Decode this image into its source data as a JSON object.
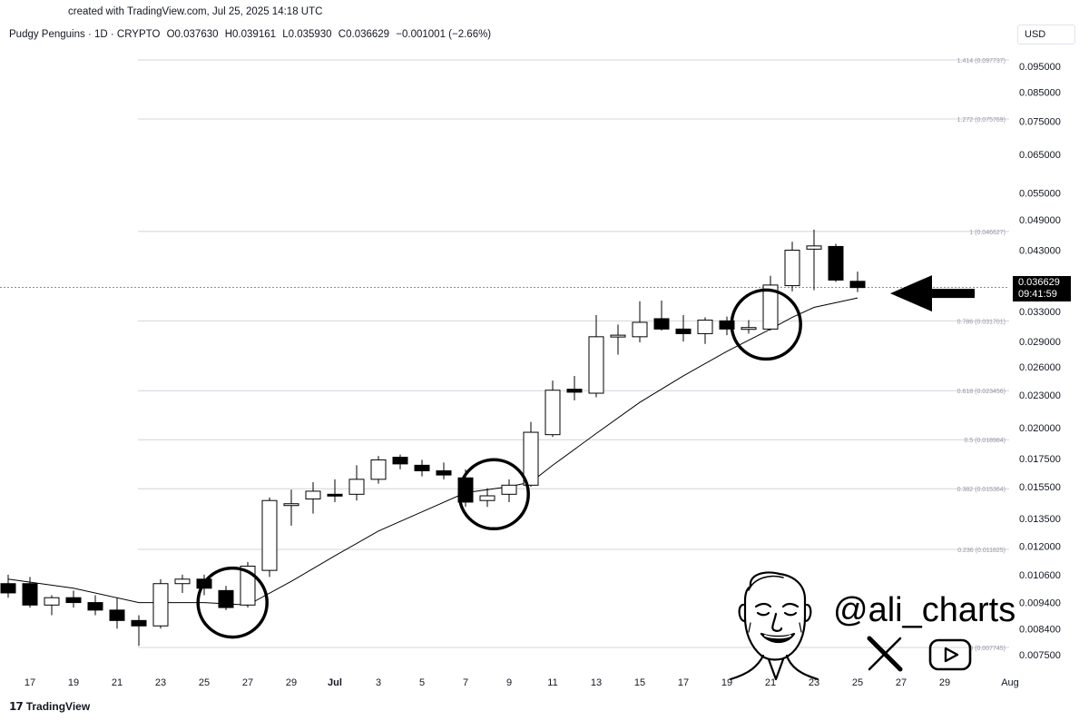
{
  "header": {
    "credit": "created with TradingView.com, Jul 25, 2025 14:18 UTC",
    "symbol": "Pudgy Penguins · 1D · CRYPTO",
    "open": "O0.037630",
    "high": "H0.039161",
    "low": "L0.035930",
    "close": "C0.036629",
    "change": "−0.001001 (−2.66%)",
    "currency": "USD"
  },
  "branding": {
    "tradingview": "TradingView",
    "handle": "@ali_charts",
    "icons": [
      "x-logo-icon",
      "youtube-icon"
    ]
  },
  "price_tag": {
    "price": "0.036629",
    "countdown": "09:41:59"
  },
  "chart_data": {
    "type": "candlestick",
    "y_scale": "log",
    "ylim": [
      0.0068,
      0.11
    ],
    "y_ticks": [
      "0.095000",
      "0.085000",
      "0.075000",
      "0.065000",
      "0.055000",
      "0.049000",
      "0.043000",
      "0.033000",
      "0.029000",
      "0.026000",
      "0.023000",
      "0.020000",
      "0.017500",
      "0.015500",
      "0.013500",
      "0.012000",
      "0.010600",
      "0.009400",
      "0.008400",
      "0.007500"
    ],
    "x_ticks": [
      {
        "label": "17",
        "day": 0
      },
      {
        "label": "19",
        "day": 2
      },
      {
        "label": "21",
        "day": 4
      },
      {
        "label": "23",
        "day": 6
      },
      {
        "label": "25",
        "day": 8
      },
      {
        "label": "27",
        "day": 10
      },
      {
        "label": "29",
        "day": 12
      },
      {
        "label": "Jul",
        "day": 14
      },
      {
        "label": "3",
        "day": 16
      },
      {
        "label": "5",
        "day": 18
      },
      {
        "label": "7",
        "day": 20
      },
      {
        "label": "9",
        "day": 22
      },
      {
        "label": "11",
        "day": 24
      },
      {
        "label": "13",
        "day": 26
      },
      {
        "label": "15",
        "day": 28
      },
      {
        "label": "17",
        "day": 30
      },
      {
        "label": "19",
        "day": 32
      },
      {
        "label": "21",
        "day": 34
      },
      {
        "label": "23",
        "day": 36
      },
      {
        "label": "25",
        "day": 38
      },
      {
        "label": "27",
        "day": 40
      },
      {
        "label": "29",
        "day": 42
      },
      {
        "label": "Aug",
        "day": 45
      }
    ],
    "fib_levels": [
      {
        "ratio": "1.414",
        "value": 0.097737,
        "label": "1.414 (0.097737)"
      },
      {
        "ratio": "1.272",
        "value": 0.075769,
        "label": "1.272 (0.075769)"
      },
      {
        "ratio": "1",
        "value": 0.046627,
        "label": "1 (0.046627)"
      },
      {
        "ratio": "0.786",
        "value": 0.031701,
        "label": "0.786 (0.031701)"
      },
      {
        "ratio": "0.618",
        "value": 0.023456,
        "label": "0.618 (0.023456)"
      },
      {
        "ratio": "0.5",
        "value": 0.018984,
        "label": "0.5 (0.018984)"
      },
      {
        "ratio": "0.382",
        "value": 0.015364,
        "label": "0.382 (0.015364)"
      },
      {
        "ratio": "0.236",
        "value": 0.011825,
        "label": "0.236 (0.011825)"
      },
      {
        "ratio": "0",
        "value": 0.007745,
        "label": "0 (0.007745)"
      }
    ],
    "current_price": 0.036629,
    "candles": [
      {
        "d": -1,
        "o": 0.0102,
        "h": 0.0106,
        "l": 0.0096,
        "c": 0.0098
      },
      {
        "d": 0,
        "o": 0.0102,
        "h": 0.0105,
        "l": 0.0092,
        "c": 0.0093
      },
      {
        "d": 1,
        "o": 0.0093,
        "h": 0.0097,
        "l": 0.0089,
        "c": 0.0096
      },
      {
        "d": 2,
        "o": 0.0096,
        "h": 0.0099,
        "l": 0.0092,
        "c": 0.0094
      },
      {
        "d": 3,
        "o": 0.0094,
        "h": 0.0097,
        "l": 0.0089,
        "c": 0.0091
      },
      {
        "d": 4,
        "o": 0.0091,
        "h": 0.0096,
        "l": 0.0084,
        "c": 0.0087
      },
      {
        "d": 5,
        "o": 0.0087,
        "h": 0.0089,
        "l": 0.0078,
        "c": 0.0085
      },
      {
        "d": 6,
        "o": 0.0085,
        "h": 0.0104,
        "l": 0.0084,
        "c": 0.0102
      },
      {
        "d": 7,
        "o": 0.0102,
        "h": 0.0106,
        "l": 0.0098,
        "c": 0.0104
      },
      {
        "d": 8,
        "o": 0.0104,
        "h": 0.0106,
        "l": 0.0097,
        "c": 0.01
      },
      {
        "d": 9,
        "o": 0.0099,
        "h": 0.0101,
        "l": 0.0091,
        "c": 0.0092
      },
      {
        "d": 10,
        "o": 0.0093,
        "h": 0.0112,
        "l": 0.0092,
        "c": 0.011
      },
      {
        "d": 11,
        "o": 0.0108,
        "h": 0.0148,
        "l": 0.0105,
        "c": 0.0146
      },
      {
        "d": 12,
        "o": 0.0143,
        "h": 0.0153,
        "l": 0.0131,
        "c": 0.0144
      },
      {
        "d": 13,
        "o": 0.0147,
        "h": 0.0158,
        "l": 0.0138,
        "c": 0.0152
      },
      {
        "d": 14,
        "o": 0.015,
        "h": 0.016,
        "l": 0.0145,
        "c": 0.0149
      },
      {
        "d": 15,
        "o": 0.015,
        "h": 0.017,
        "l": 0.0146,
        "c": 0.016
      },
      {
        "d": 16,
        "o": 0.016,
        "h": 0.0177,
        "l": 0.0157,
        "c": 0.0174
      },
      {
        "d": 17,
        "o": 0.0176,
        "h": 0.0178,
        "l": 0.0167,
        "c": 0.0171
      },
      {
        "d": 18,
        "o": 0.017,
        "h": 0.0174,
        "l": 0.0162,
        "c": 0.0166
      },
      {
        "d": 19,
        "o": 0.0166,
        "h": 0.0172,
        "l": 0.016,
        "c": 0.0163
      },
      {
        "d": 20,
        "o": 0.0161,
        "h": 0.0167,
        "l": 0.0142,
        "c": 0.0145
      },
      {
        "d": 21,
        "o": 0.0146,
        "h": 0.0154,
        "l": 0.0142,
        "c": 0.0149
      },
      {
        "d": 22,
        "o": 0.015,
        "h": 0.016,
        "l": 0.0145,
        "c": 0.0156
      },
      {
        "d": 23,
        "o": 0.0156,
        "h": 0.0205,
        "l": 0.0155,
        "c": 0.0196
      },
      {
        "d": 24,
        "o": 0.0194,
        "h": 0.0245,
        "l": 0.0192,
        "c": 0.0235
      },
      {
        "d": 25,
        "o": 0.0236,
        "h": 0.025,
        "l": 0.0225,
        "c": 0.0233
      },
      {
        "d": 26,
        "o": 0.0232,
        "h": 0.0325,
        "l": 0.0228,
        "c": 0.0296
      },
      {
        "d": 27,
        "o": 0.0297,
        "h": 0.0312,
        "l": 0.0274,
        "c": 0.0298
      },
      {
        "d": 28,
        "o": 0.0296,
        "h": 0.0345,
        "l": 0.0289,
        "c": 0.0315
      },
      {
        "d": 29,
        "o": 0.032,
        "h": 0.0346,
        "l": 0.0304,
        "c": 0.0306
      },
      {
        "d": 30,
        "o": 0.0306,
        "h": 0.0325,
        "l": 0.029,
        "c": 0.03
      },
      {
        "d": 31,
        "o": 0.03,
        "h": 0.0322,
        "l": 0.0287,
        "c": 0.0318
      },
      {
        "d": 32,
        "o": 0.0317,
        "h": 0.0323,
        "l": 0.0298,
        "c": 0.0306
      },
      {
        "d": 33,
        "o": 0.0307,
        "h": 0.0318,
        "l": 0.03,
        "c": 0.0308
      },
      {
        "d": 34,
        "o": 0.0306,
        "h": 0.0385,
        "l": 0.0304,
        "c": 0.037
      },
      {
        "d": 35,
        "o": 0.0369,
        "h": 0.0446,
        "l": 0.036,
        "c": 0.043
      },
      {
        "d": 36,
        "o": 0.0432,
        "h": 0.047,
        "l": 0.0362,
        "c": 0.0438
      },
      {
        "d": 37,
        "o": 0.0437,
        "h": 0.0442,
        "l": 0.0375,
        "c": 0.0378
      },
      {
        "d": 38,
        "o": 0.0376,
        "h": 0.0392,
        "l": 0.0359,
        "c": 0.0366
      }
    ],
    "moving_average": [
      {
        "d": -1,
        "v": 0.0104
      },
      {
        "d": 2,
        "v": 0.01
      },
      {
        "d": 5,
        "v": 0.0094
      },
      {
        "d": 8,
        "v": 0.0094
      },
      {
        "d": 10,
        "v": 0.0093
      },
      {
        "d": 12,
        "v": 0.0103
      },
      {
        "d": 14,
        "v": 0.0115
      },
      {
        "d": 16,
        "v": 0.0128
      },
      {
        "d": 18,
        "v": 0.0139
      },
      {
        "d": 20,
        "v": 0.0151
      },
      {
        "d": 22,
        "v": 0.0155
      },
      {
        "d": 23,
        "v": 0.0158
      },
      {
        "d": 24,
        "v": 0.017
      },
      {
        "d": 26,
        "v": 0.0195
      },
      {
        "d": 28,
        "v": 0.0223
      },
      {
        "d": 30,
        "v": 0.025
      },
      {
        "d": 32,
        "v": 0.0278
      },
      {
        "d": 34,
        "v": 0.0306
      },
      {
        "d": 35,
        "v": 0.0322
      },
      {
        "d": 36,
        "v": 0.0336
      },
      {
        "d": 38,
        "v": 0.035
      }
    ],
    "highlight_circles": [
      {
        "d": 9.3,
        "v": 0.0094
      },
      {
        "d": 21.3,
        "v": 0.015
      },
      {
        "d": 33.8,
        "v": 0.0312
      }
    ],
    "arrow_target": {
      "d": 39.5,
      "v": 0.035
    }
  }
}
